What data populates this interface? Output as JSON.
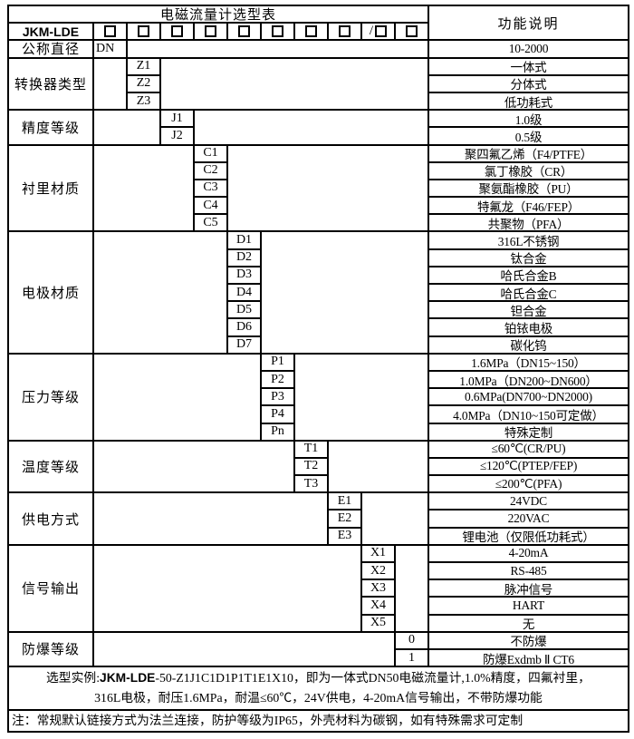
{
  "colors": {
    "border": "#000000",
    "background": "#ffffff",
    "text": "#000000"
  },
  "table": {
    "title": "电磁流量计选型表",
    "desc_header": "功能说明",
    "model_label": "JKM-LDE",
    "model_boxes": [
      "",
      "",
      "",
      "",
      "",
      "",
      "",
      "",
      "/",
      ""
    ],
    "sections": [
      {
        "label": "公称直径",
        "rows": [
          {
            "code": "DN",
            "desc": "10-2000"
          }
        ]
      },
      {
        "label": "转换器类型",
        "rows": [
          {
            "code": "Z1",
            "desc": "一体式"
          },
          {
            "code": "Z2",
            "desc": "分体式"
          },
          {
            "code": "Z3",
            "desc": "低功耗式"
          }
        ]
      },
      {
        "label": "精度等级",
        "rows": [
          {
            "code": "J1",
            "desc": "1.0级"
          },
          {
            "code": "J2",
            "desc": "0.5级"
          }
        ]
      },
      {
        "label": "衬里材质",
        "rows": [
          {
            "code": "C1",
            "desc": "聚四氟乙烯（F4/PTFE）"
          },
          {
            "code": "C2",
            "desc": "氯丁橡胶（CR）"
          },
          {
            "code": "C3",
            "desc": "聚氨酯橡胶（PU）"
          },
          {
            "code": "C4",
            "desc": "特氟龙（F46/FEP）"
          },
          {
            "code": "C5",
            "desc": "共聚物（PFA）"
          }
        ]
      },
      {
        "label": "电极材质",
        "rows": [
          {
            "code": "D1",
            "desc": "316L不锈钢"
          },
          {
            "code": "D2",
            "desc": "钛合金"
          },
          {
            "code": "D3",
            "desc": "哈氏合金B"
          },
          {
            "code": "D4",
            "desc": "哈氏合金C"
          },
          {
            "code": "D5",
            "desc": "钽合金"
          },
          {
            "code": "D6",
            "desc": "铂铱电极"
          },
          {
            "code": "D7",
            "desc": "碳化钨"
          }
        ]
      },
      {
        "label": "压力等级",
        "rows": [
          {
            "code": "P1",
            "desc": "1.6MPa（DN15~150）"
          },
          {
            "code": "P2",
            "desc": "1.0MPa（DN200~DN600）"
          },
          {
            "code": "P3",
            "desc": "0.6MPa(DN700~DN2000)"
          },
          {
            "code": "P4",
            "desc": "4.0MPa（DN10~150可定做）"
          },
          {
            "code": "Pn",
            "desc": "特殊定制"
          }
        ]
      },
      {
        "label": "温度等级",
        "rows": [
          {
            "code": "T1",
            "desc": "≤60℃(CR/PU)"
          },
          {
            "code": "T2",
            "desc": "≤120℃(PTEP/FEP)"
          },
          {
            "code": "T3",
            "desc": "≤200℃(PFA)"
          }
        ]
      },
      {
        "label": "供电方式",
        "rows": [
          {
            "code": "E1",
            "desc": "24VDC"
          },
          {
            "code": "E2",
            "desc": "220VAC"
          },
          {
            "code": "E3",
            "desc": "锂电池（仅限低功耗式）"
          }
        ]
      },
      {
        "label": "信号输出",
        "rows": [
          {
            "code": "X1",
            "desc": "4-20mA"
          },
          {
            "code": "X2",
            "desc": "RS-485"
          },
          {
            "code": "X3",
            "desc": "脉冲信号"
          },
          {
            "code": "X4",
            "desc": "HART"
          },
          {
            "code": "X5",
            "desc": "无"
          }
        ]
      },
      {
        "label": "防爆等级",
        "rows": [
          {
            "code": "0",
            "desc": "不防爆"
          },
          {
            "code": "1",
            "desc": "防爆Exdmb Ⅱ CT6"
          }
        ]
      }
    ]
  },
  "footer": {
    "example_prefix": "选型实例:",
    "example_model": "JKM-LDE",
    "example_rest": "-50-Z1J1C1D1P1T1E1X10，即为一体式DN50电磁流量计,1.0%精度，四氟衬里，",
    "example_line2": "316L电极，耐压1.6MPa，耐温≤60℃，24V供电，4-20mA信号输出，不带防爆功能",
    "note": "注：常规默认链接方式为法兰连接，防护等级为IP65，外壳材料为碳钢，如有特殊需求可定制"
  }
}
